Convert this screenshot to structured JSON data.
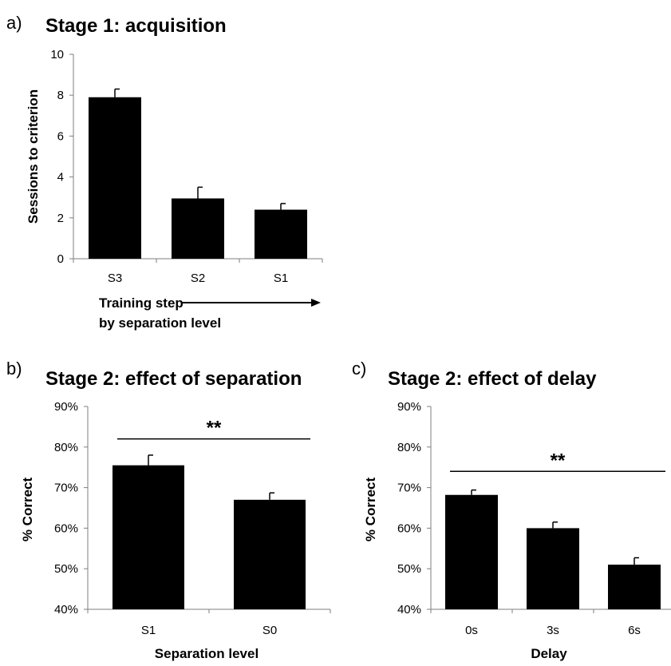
{
  "chart_data": [
    {
      "id": "a",
      "panel_letter": "a)",
      "type": "bar",
      "title": "Stage 1: acquisition",
      "ylabel": "Sessions to criterion",
      "xlabel_lines": [
        "Training step",
        "by separation level"
      ],
      "categories": [
        "S3",
        "S2",
        "S1"
      ],
      "values": [
        7.9,
        2.95,
        2.4
      ],
      "errors": [
        0.4,
        0.55,
        0.3
      ],
      "ylim": [
        0,
        10
      ],
      "yticks": [
        0,
        2,
        4,
        6,
        8,
        10
      ],
      "ytick_labels": [
        "0",
        "2",
        "4",
        "6",
        "8",
        "10"
      ],
      "grid": false,
      "bar_color": "#000000"
    },
    {
      "id": "b",
      "panel_letter": "b)",
      "type": "bar",
      "title": "Stage 2: effect of separation",
      "ylabel": "% Correct",
      "xlabel": "Separation level",
      "categories": [
        "S1",
        "S0"
      ],
      "values": [
        75.5,
        67
      ],
      "errors": [
        2.5,
        1.7
      ],
      "ylim": [
        40,
        90
      ],
      "yticks": [
        40,
        50,
        60,
        70,
        80,
        90
      ],
      "ytick_labels": [
        "40%",
        "50%",
        "60%",
        "70%",
        "80%",
        "90%"
      ],
      "grid": false,
      "bar_color": "#000000",
      "significance": {
        "label": "**",
        "from": 0,
        "to": 1,
        "y": 82
      }
    },
    {
      "id": "c",
      "panel_letter": "c)",
      "type": "bar",
      "title": "Stage 2: effect of delay",
      "ylabel": "% Correct",
      "xlabel": "Delay",
      "categories": [
        "0s",
        "3s",
        "6s"
      ],
      "values": [
        68.2,
        60,
        51
      ],
      "errors": [
        1.2,
        1.5,
        1.7
      ],
      "ylim": [
        40,
        90
      ],
      "yticks": [
        40,
        50,
        60,
        70,
        80,
        90
      ],
      "ytick_labels": [
        "40%",
        "50%",
        "60%",
        "70%",
        "80%",
        "90%"
      ],
      "grid": false,
      "bar_color": "#000000",
      "significance": {
        "label": "**",
        "from": 0,
        "to": 2,
        "y": 74
      }
    }
  ]
}
